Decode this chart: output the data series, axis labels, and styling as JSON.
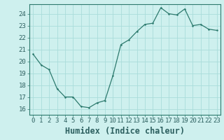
{
  "x": [
    0,
    1,
    2,
    3,
    4,
    5,
    6,
    7,
    8,
    9,
    10,
    11,
    12,
    13,
    14,
    15,
    16,
    17,
    18,
    19,
    20,
    21,
    22,
    23
  ],
  "y": [
    20.6,
    19.7,
    19.3,
    17.7,
    17.0,
    17.0,
    16.2,
    16.1,
    16.5,
    16.7,
    18.8,
    21.4,
    21.8,
    22.5,
    23.1,
    23.2,
    24.5,
    24.0,
    23.9,
    24.4,
    23.0,
    23.1,
    22.7,
    22.6
  ],
  "xlabel": "Humidex (Indice chaleur)",
  "ylim": [
    15.5,
    24.8
  ],
  "xlim": [
    -0.5,
    23.5
  ],
  "yticks": [
    16,
    17,
    18,
    19,
    20,
    21,
    22,
    23,
    24
  ],
  "xticks": [
    0,
    1,
    2,
    3,
    4,
    5,
    6,
    7,
    8,
    9,
    10,
    11,
    12,
    13,
    14,
    15,
    16,
    17,
    18,
    19,
    20,
    21,
    22,
    23
  ],
  "line_color": "#2d7a6e",
  "marker_color": "#2d7a6e",
  "bg_color": "#cef0ee",
  "grid_color": "#aadcda",
  "tick_label_fontsize": 6.5,
  "xlabel_fontsize": 8.5
}
